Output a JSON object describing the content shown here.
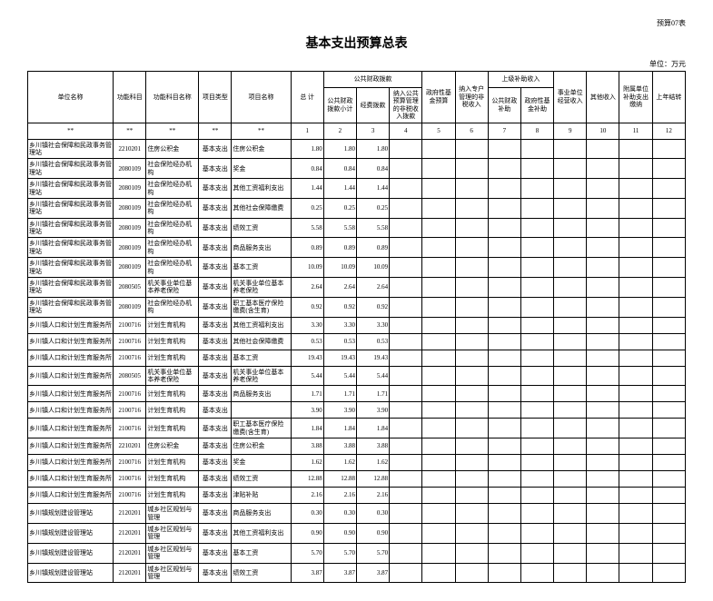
{
  "top_note": "预算07表",
  "title": "基本支出预算总表",
  "unit": "单位：万元",
  "headers": {
    "unit_name": "单位名称",
    "func_code": "功能科目",
    "func_name": "功能科目名称",
    "proj_type": "项目类型",
    "proj_name": "项目名称",
    "total": "总 计",
    "pub_fin_bud": "公共财政拨款",
    "pub_fin_sub": "公共财政拨款小计",
    "op_bud": "经费拨款",
    "mgmt_fee": "纳入公共预算管理的非税收入拨款",
    "gov_fund": "政府性基金预算",
    "sp_acct": "纳入专户管理的非税收入",
    "upper_inc": "上级补助收入",
    "pub_sub": "公共财政补助",
    "gov_sub": "政府性基金补助",
    "inst_inc": "事业单位经营收入",
    "other_inc": "其他收入",
    "horiz": "附属单位补助支出缴纳",
    "carry": "上年结转"
  },
  "index_row": [
    "**",
    "**",
    "**",
    "**",
    "**",
    "1",
    "2",
    "3",
    "4",
    "5",
    "6",
    "7",
    "8",
    "9",
    "10",
    "11",
    "12"
  ],
  "rows": [
    {
      "name": "乡川镇社会保障和民政事务管理站",
      "code": "2210201",
      "subj": "住房公积金",
      "type": "基本支出",
      "proj": "住房公积金",
      "total": "1.80",
      "a": "1.80",
      "b": "1.80"
    },
    {
      "name": "乡川镇社会保障和民政事务管理站",
      "code": "2080109",
      "subj": "社会保险经办机构",
      "type": "基本支出",
      "proj": "奖金",
      "total": "0.84",
      "a": "0.84",
      "b": "0.84"
    },
    {
      "name": "乡川镇社会保障和民政事务管理站",
      "code": "2080109",
      "subj": "社会保险经办机构",
      "type": "基本支出",
      "proj": "其他工资福利支出",
      "total": "1.44",
      "a": "1.44",
      "b": "1.44"
    },
    {
      "name": "乡川镇社会保障和民政事务管理站",
      "code": "2080109",
      "subj": "社会保险经办机构",
      "type": "基本支出",
      "proj": "其他社会保障缴费",
      "total": "0.25",
      "a": "0.25",
      "b": "0.25"
    },
    {
      "name": "乡川镇社会保障和民政事务管理站",
      "code": "2080109",
      "subj": "社会保险经办机构",
      "type": "基本支出",
      "proj": "绩效工资",
      "total": "5.58",
      "a": "5.58",
      "b": "5.58"
    },
    {
      "name": "乡川镇社会保障和民政事务管理站",
      "code": "2080109",
      "subj": "社会保险经办机构",
      "type": "基本支出",
      "proj": "商品服务支出",
      "total": "0.89",
      "a": "0.89",
      "b": "0.89"
    },
    {
      "name": "乡川镇社会保障和民政事务管理站",
      "code": "2080109",
      "subj": "社会保险经办机构",
      "type": "基本支出",
      "proj": "基本工资",
      "total": "10.09",
      "a": "10.09",
      "b": "10.09"
    },
    {
      "name": "乡川镇社会保障和民政事务管理站",
      "code": "2080505",
      "subj": "机关事业单位基本养老保险",
      "type": "基本支出",
      "proj": "机关事业单位基本养老保险",
      "total": "2.64",
      "a": "2.64",
      "b": "2.64"
    },
    {
      "name": "乡川镇社会保障和民政事务管理站",
      "code": "2080109",
      "subj": "社会保险经办机构",
      "type": "基本支出",
      "proj": "职工基本医疗保险缴费(含生育)",
      "total": "0.92",
      "a": "0.92",
      "b": "0.92"
    },
    {
      "name": "乡川镇人口和计划生育服务所",
      "code": "2100716",
      "subj": "计划生育机构",
      "type": "基本支出",
      "proj": "其他工资福利支出",
      "total": "3.30",
      "a": "3.30",
      "b": "3.30"
    },
    {
      "name": "乡川镇人口和计划生育服务所",
      "code": "2100716",
      "subj": "计划生育机构",
      "type": "基本支出",
      "proj": "其他社会保障缴费",
      "total": "0.53",
      "a": "0.53",
      "b": "0.53"
    },
    {
      "name": "乡川镇人口和计划生育服务所",
      "code": "2100716",
      "subj": "计划生育机构",
      "type": "基本支出",
      "proj": "基本工资",
      "total": "19.43",
      "a": "19.43",
      "b": "19.43"
    },
    {
      "name": "乡川镇人口和计划生育服务所",
      "code": "2080505",
      "subj": "机关事业单位基本养老保险",
      "type": "基本支出",
      "proj": "机关事业单位基本养老保险",
      "total": "5.44",
      "a": "5.44",
      "b": "5.44"
    },
    {
      "name": "乡川镇人口和计划生育服务所",
      "code": "2100716",
      "subj": "计划生育机构",
      "type": "基本支出",
      "proj": "商品服务支出",
      "total": "1.71",
      "a": "1.71",
      "b": "1.71"
    },
    {
      "name": "乡川镇人口和计划生育服务所",
      "code": "2100716",
      "subj": "计划生育机构",
      "type": "基本支出",
      "proj": "",
      "total": "3.90",
      "a": "3.90",
      "b": "3.90"
    },
    {
      "name": "乡川镇人口和计划生育服务所",
      "code": "2100716",
      "subj": "计划生育机构",
      "type": "基本支出",
      "proj": "职工基本医疗保险缴费(含生育)",
      "total": "1.84",
      "a": "1.84",
      "b": "1.84"
    },
    {
      "name": "乡川镇人口和计划生育服务所",
      "code": "2210201",
      "subj": "住房公积金",
      "type": "基本支出",
      "proj": "住房公积金",
      "total": "3.88",
      "a": "3.88",
      "b": "3.88"
    },
    {
      "name": "乡川镇人口和计划生育服务所",
      "code": "2100716",
      "subj": "计划生育机构",
      "type": "基本支出",
      "proj": "奖金",
      "total": "1.62",
      "a": "1.62",
      "b": "1.62"
    },
    {
      "name": "乡川镇人口和计划生育服务所",
      "code": "2100716",
      "subj": "计划生育机构",
      "type": "基本支出",
      "proj": "绩效工资",
      "total": "12.88",
      "a": "12.88",
      "b": "12.88"
    },
    {
      "name": "乡川镇人口和计划生育服务所",
      "code": "2100716",
      "subj": "计划生育机构",
      "type": "基本支出",
      "proj": "津贴补贴",
      "total": "2.16",
      "a": "2.16",
      "b": "2.16"
    },
    {
      "name": "乡川镇规划建设管理站",
      "code": "2120201",
      "subj": "城乡社区规划与管理",
      "type": "基本支出",
      "proj": "商品服务支出",
      "total": "0.30",
      "a": "0.30",
      "b": "0.30"
    },
    {
      "name": "乡川镇规划建设管理站",
      "code": "2120201",
      "subj": "城乡社区规划与管理",
      "type": "基本支出",
      "proj": "其他工资福利支出",
      "total": "0.90",
      "a": "0.90",
      "b": "0.90"
    },
    {
      "name": "乡川镇规划建设管理站",
      "code": "2120201",
      "subj": "城乡社区规划与管理",
      "type": "基本支出",
      "proj": "基本工资",
      "total": "5.70",
      "a": "5.70",
      "b": "5.70"
    },
    {
      "name": "乡川镇规划建设管理站",
      "code": "2120201",
      "subj": "城乡社区规划与管理",
      "type": "基本支出",
      "proj": "绩效工资",
      "total": "3.87",
      "a": "3.87",
      "b": "3.87"
    }
  ]
}
